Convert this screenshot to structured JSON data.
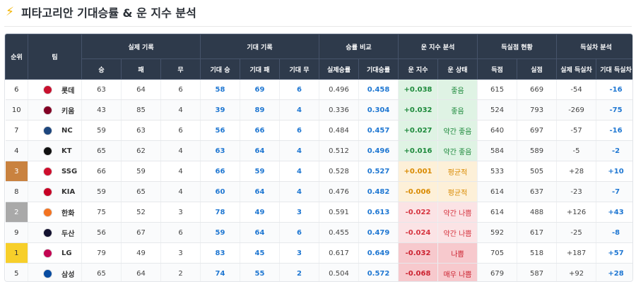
{
  "page": {
    "title": "피타고리안 기대승률 & 운 지수 분석",
    "icon": "lightning-icon"
  },
  "table": {
    "groups": {
      "rank": "순위",
      "team": "팀",
      "actual": "실제 기록",
      "expected": "기대 기록",
      "compare": "승률 비교",
      "luck": "운 지수 분석",
      "runs": "득실점 현황",
      "diff": "득실차 분석"
    },
    "columns": {
      "win": "승",
      "loss": "패",
      "draw": "무",
      "exp_win": "기대 승",
      "exp_loss": "기대 패",
      "exp_draw": "기대 무",
      "actual_pct": "실제승률",
      "exp_pct": "기대승률",
      "luck_index": "운 지수",
      "luck_state": "운 상태",
      "runs_scored": "득점",
      "runs_allowed": "실점",
      "actual_diff": "실제 득실차",
      "exp_diff": "기대 득실차"
    },
    "rows": [
      {
        "rank": "6",
        "team": "롯데",
        "logo": "lotte-logo-icon",
        "logo_color": "#c8102e",
        "w": "63",
        "l": "64",
        "d": "6",
        "ew": "58",
        "el": "69",
        "ed": "6",
        "apct": "0.496",
        "epct": "0.458",
        "luck": "+0.038",
        "state": "좋음",
        "tier": "good",
        "rs": "615",
        "ra": "669",
        "ad": "-54",
        "edf": "-16",
        "medal": ""
      },
      {
        "rank": "10",
        "team": "키움",
        "logo": "kiwoom-logo-icon",
        "logo_color": "#820024",
        "w": "43",
        "l": "85",
        "d": "4",
        "ew": "39",
        "el": "89",
        "ed": "4",
        "apct": "0.336",
        "epct": "0.304",
        "luck": "+0.032",
        "state": "좋음",
        "tier": "good",
        "rs": "524",
        "ra": "793",
        "ad": "-269",
        "edf": "-75",
        "medal": ""
      },
      {
        "rank": "7",
        "team": "NC",
        "logo": "nc-logo-icon",
        "logo_color": "#1d467d",
        "w": "59",
        "l": "63",
        "d": "6",
        "ew": "56",
        "el": "66",
        "ed": "6",
        "apct": "0.484",
        "epct": "0.457",
        "luck": "+0.027",
        "state": "약간 좋음",
        "tier": "good",
        "rs": "640",
        "ra": "697",
        "ad": "-57",
        "edf": "-16",
        "medal": ""
      },
      {
        "rank": "4",
        "team": "KT",
        "logo": "kt-logo-icon",
        "logo_color": "#111111",
        "w": "65",
        "l": "62",
        "d": "4",
        "ew": "63",
        "el": "64",
        "ed": "4",
        "apct": "0.512",
        "epct": "0.496",
        "luck": "+0.016",
        "state": "약간 좋음",
        "tier": "good",
        "rs": "584",
        "ra": "589",
        "ad": "-5",
        "edf": "-2",
        "medal": ""
      },
      {
        "rank": "3",
        "team": "SSG",
        "logo": "ssg-logo-icon",
        "logo_color": "#ce0e2d",
        "w": "66",
        "l": "59",
        "d": "4",
        "ew": "66",
        "el": "59",
        "ed": "4",
        "apct": "0.528",
        "epct": "0.527",
        "luck": "+0.001",
        "state": "평균적",
        "tier": "mid",
        "rs": "533",
        "ra": "505",
        "ad": "+28",
        "edf": "+10",
        "medal": "bronze"
      },
      {
        "rank": "8",
        "team": "KIA",
        "logo": "kia-logo-icon",
        "logo_color": "#c70125",
        "w": "59",
        "l": "65",
        "d": "4",
        "ew": "60",
        "el": "64",
        "ed": "4",
        "apct": "0.476",
        "epct": "0.482",
        "luck": "-0.006",
        "state": "평균적",
        "tier": "mid",
        "rs": "614",
        "ra": "637",
        "ad": "-23",
        "edf": "-7",
        "medal": ""
      },
      {
        "rank": "2",
        "team": "한화",
        "logo": "hanwha-logo-icon",
        "logo_color": "#f37321",
        "w": "75",
        "l": "52",
        "d": "3",
        "ew": "78",
        "el": "49",
        "ed": "3",
        "apct": "0.591",
        "epct": "0.613",
        "luck": "-0.022",
        "state": "약간 나쁨",
        "tier": "low",
        "rs": "614",
        "ra": "488",
        "ad": "+126",
        "edf": "+43",
        "medal": "silver"
      },
      {
        "rank": "9",
        "team": "두산",
        "logo": "doosan-logo-icon",
        "logo_color": "#131230",
        "w": "56",
        "l": "67",
        "d": "6",
        "ew": "59",
        "el": "64",
        "ed": "6",
        "apct": "0.455",
        "epct": "0.479",
        "luck": "-0.024",
        "state": "약간 나쁨",
        "tier": "low",
        "rs": "592",
        "ra": "617",
        "ad": "-25",
        "edf": "-8",
        "medal": ""
      },
      {
        "rank": "1",
        "team": "LG",
        "logo": "lg-logo-icon",
        "logo_color": "#c30452",
        "w": "79",
        "l": "49",
        "d": "3",
        "ew": "83",
        "el": "45",
        "ed": "3",
        "apct": "0.617",
        "epct": "0.649",
        "luck": "-0.032",
        "state": "나쁨",
        "tier": "bad",
        "rs": "705",
        "ra": "518",
        "ad": "+187",
        "edf": "+57",
        "medal": "gold"
      },
      {
        "rank": "5",
        "team": "삼성",
        "logo": "samsung-logo-icon",
        "logo_color": "#074ca1",
        "w": "65",
        "l": "64",
        "d": "2",
        "ew": "74",
        "el": "55",
        "ed": "2",
        "apct": "0.504",
        "epct": "0.572",
        "luck": "-0.068",
        "state": "매우 나쁨",
        "tier": "bad",
        "rs": "679",
        "ra": "587",
        "ad": "+92",
        "edf": "+28",
        "medal": ""
      }
    ]
  }
}
